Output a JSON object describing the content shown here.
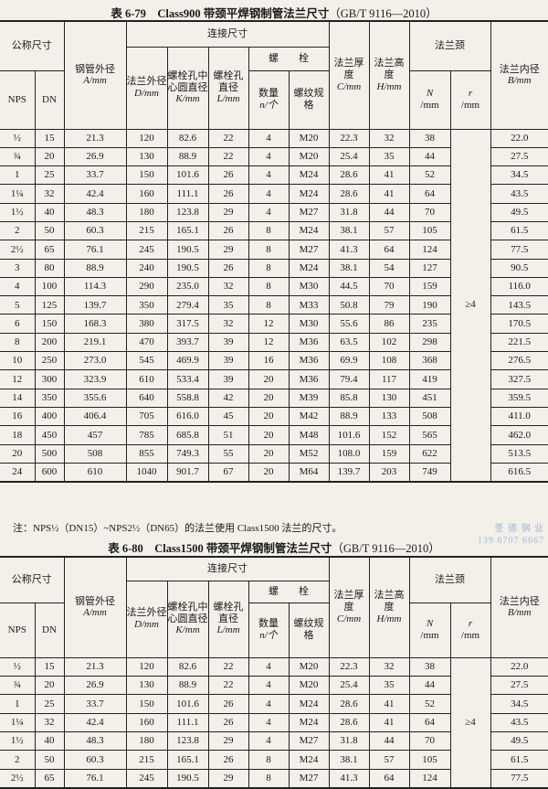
{
  "table1": {
    "title": "表 6-79　Class900 带颈平焊钢制管法兰尺寸",
    "standard": "（GB/T 9116—2010）",
    "r_value": "≥4",
    "rows": [
      [
        "½",
        "15",
        "21.3",
        "120",
        "82.6",
        "22",
        "4",
        "M20",
        "22.3",
        "32",
        "38",
        "22.0"
      ],
      [
        "¾",
        "20",
        "26.9",
        "130",
        "88.9",
        "22",
        "4",
        "M20",
        "25.4",
        "35",
        "44",
        "27.5"
      ],
      [
        "1",
        "25",
        "33.7",
        "150",
        "101.6",
        "26",
        "4",
        "M24",
        "28.6",
        "41",
        "52",
        "34.5"
      ],
      [
        "1¼",
        "32",
        "42.4",
        "160",
        "111.1",
        "26",
        "4",
        "M24",
        "28.6",
        "41",
        "64",
        "43.5"
      ],
      [
        "1½",
        "40",
        "48.3",
        "180",
        "123.8",
        "29",
        "4",
        "M27",
        "31.8",
        "44",
        "70",
        "49.5"
      ],
      [
        "2",
        "50",
        "60.3",
        "215",
        "165.1",
        "26",
        "8",
        "M24",
        "38.1",
        "57",
        "105",
        "61.5"
      ],
      [
        "2½",
        "65",
        "76.1",
        "245",
        "190.5",
        "29",
        "8",
        "M27",
        "41.3",
        "64",
        "124",
        "77.5"
      ],
      [
        "3",
        "80",
        "88.9",
        "240",
        "190.5",
        "26",
        "8",
        "M24",
        "38.1",
        "54",
        "127",
        "90.5"
      ],
      [
        "4",
        "100",
        "114.3",
        "290",
        "235.0",
        "32",
        "8",
        "M30",
        "44.5",
        "70",
        "159",
        "116.0"
      ],
      [
        "5",
        "125",
        "139.7",
        "350",
        "279.4",
        "35",
        "8",
        "M33",
        "50.8",
        "79",
        "190",
        "143.5"
      ],
      [
        "6",
        "150",
        "168.3",
        "380",
        "317.5",
        "32",
        "12",
        "M30",
        "55.6",
        "86",
        "235",
        "170.5"
      ],
      [
        "8",
        "200",
        "219.1",
        "470",
        "393.7",
        "39",
        "12",
        "M36",
        "63.5",
        "102",
        "298",
        "221.5"
      ],
      [
        "10",
        "250",
        "273.0",
        "545",
        "469.9",
        "39",
        "16",
        "M36",
        "69.9",
        "108",
        "368",
        "276.5"
      ],
      [
        "12",
        "300",
        "323.9",
        "610",
        "533.4",
        "39",
        "20",
        "M36",
        "79.4",
        "117",
        "419",
        "327.5"
      ],
      [
        "14",
        "350",
        "355.6",
        "640",
        "558.8",
        "42",
        "20",
        "M39",
        "85.8",
        "130",
        "451",
        "359.5"
      ],
      [
        "16",
        "400",
        "406.4",
        "705",
        "616.0",
        "45",
        "20",
        "M42",
        "88.9",
        "133",
        "508",
        "411.0"
      ],
      [
        "18",
        "450",
        "457",
        "785",
        "685.8",
        "51",
        "20",
        "M48",
        "101.6",
        "152",
        "565",
        "462.0"
      ],
      [
        "20",
        "500",
        "508",
        "855",
        "749.3",
        "55",
        "20",
        "M52",
        "108.0",
        "159",
        "622",
        "513.5"
      ],
      [
        "24",
        "600",
        "610",
        "1040",
        "901.7",
        "67",
        "20",
        "M64",
        "139.7",
        "203",
        "749",
        "616.5"
      ]
    ],
    "note": "注：NPS½（DN15）~NPS2½（DN65）的法兰使用 Class1500 法兰的尺寸。"
  },
  "table2": {
    "title": "表 6-80　Class1500 带颈平焊钢制管法兰尺寸",
    "standard": "（GB/T 9116—2010）",
    "r_value": "≥4",
    "rows": [
      [
        "½",
        "15",
        "21.3",
        "120",
        "82.6",
        "22",
        "4",
        "M20",
        "22.3",
        "32",
        "38",
        "22.0"
      ],
      [
        "¾",
        "20",
        "26.9",
        "130",
        "88.9",
        "22",
        "4",
        "M20",
        "25.4",
        "35",
        "44",
        "27.5"
      ],
      [
        "1",
        "25",
        "33.7",
        "150",
        "101.6",
        "26",
        "4",
        "M24",
        "28.6",
        "41",
        "52",
        "34.5"
      ],
      [
        "1¼",
        "32",
        "42.4",
        "160",
        "111.1",
        "26",
        "4",
        "M24",
        "28.6",
        "41",
        "64",
        "43.5"
      ],
      [
        "1½",
        "40",
        "48.3",
        "180",
        "123.8",
        "29",
        "4",
        "M27",
        "31.8",
        "44",
        "70",
        "49.5"
      ],
      [
        "2",
        "50",
        "60.3",
        "215",
        "165.1",
        "26",
        "8",
        "M24",
        "38.1",
        "57",
        "105",
        "61.5"
      ],
      [
        "2½",
        "65",
        "76.1",
        "245",
        "190.5",
        "29",
        "8",
        "M27",
        "41.3",
        "64",
        "124",
        "77.5"
      ]
    ]
  },
  "headers": {
    "nominal_size": "公称尺寸",
    "nps": "NPS",
    "dn": "DN",
    "pipe_od": "钢管外径",
    "pipe_od_unit": "A/mm",
    "connection": "连接尺寸",
    "flange_od": "法兰外径",
    "flange_od_unit": "D/mm",
    "bolt_circle": "螺栓孔中心圆直径",
    "bolt_circle_unit": "K/mm",
    "bolt_hole": "螺栓孔直径",
    "bolt_hole_unit": "L/mm",
    "bolt": "螺　　栓",
    "bolt_qty": "数量",
    "bolt_qty_unit": "n/个",
    "bolt_thread": "螺纹规格",
    "thickness": "法兰厚度",
    "thickness_unit": "C/mm",
    "height": "法兰高度",
    "height_unit": "H/mm",
    "neck": "法兰颈",
    "neck_n": "N",
    "neck_n_unit": "/mm",
    "neck_r": "r",
    "neck_r_unit": "/mm",
    "bore": "法兰内径",
    "bore_unit": "B/mm"
  },
  "watermark": {
    "line1": "圣 德 钢 业",
    "line2": "139 6707 6667"
  }
}
